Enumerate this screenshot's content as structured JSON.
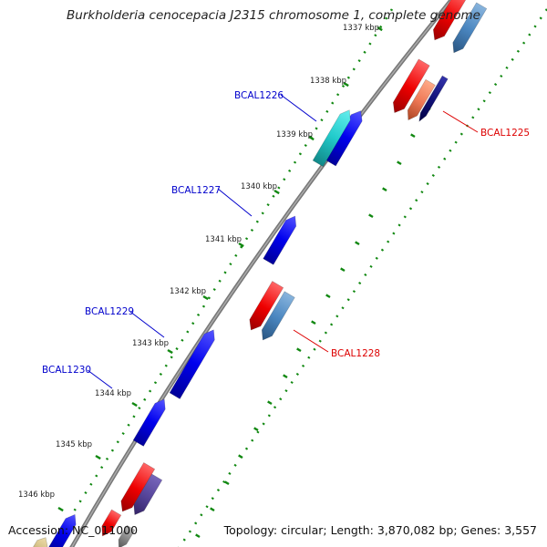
{
  "title": "Burkholderia cenocepacia J2315 chromosome 1, complete genome",
  "accession_label": "Accession: NC_011000",
  "summary_label": "Topology: circular; Length: 3,870,082 bp; Genes: 3,557",
  "colors": {
    "forward_gene": "#0000ee",
    "reverse_gene": "#ee0000",
    "forward_label": "#0000cc",
    "reverse_label": "#dd0000",
    "backbone": "#888888",
    "tick_green": "#118811"
  },
  "ticks": [
    {
      "label": "1337 kbp"
    },
    {
      "label": "1338 kbp"
    },
    {
      "label": "1339 kbp"
    },
    {
      "label": "1340 kbp"
    },
    {
      "label": "1341 kbp"
    },
    {
      "label": "1342 kbp"
    },
    {
      "label": "1343 kbp"
    },
    {
      "label": "1344 kbp"
    },
    {
      "label": "1345 kbp"
    },
    {
      "label": "1346 kbp"
    }
  ],
  "gene_labels": [
    {
      "name": "BCAL1225",
      "strand": "reverse"
    },
    {
      "name": "BCAL1226",
      "strand": "forward"
    },
    {
      "name": "BCAL1227",
      "strand": "forward"
    },
    {
      "name": "BCAL1228",
      "strand": "reverse"
    },
    {
      "name": "BCAL1229",
      "strand": "forward"
    },
    {
      "name": "BCAL1230",
      "strand": "forward"
    }
  ]
}
